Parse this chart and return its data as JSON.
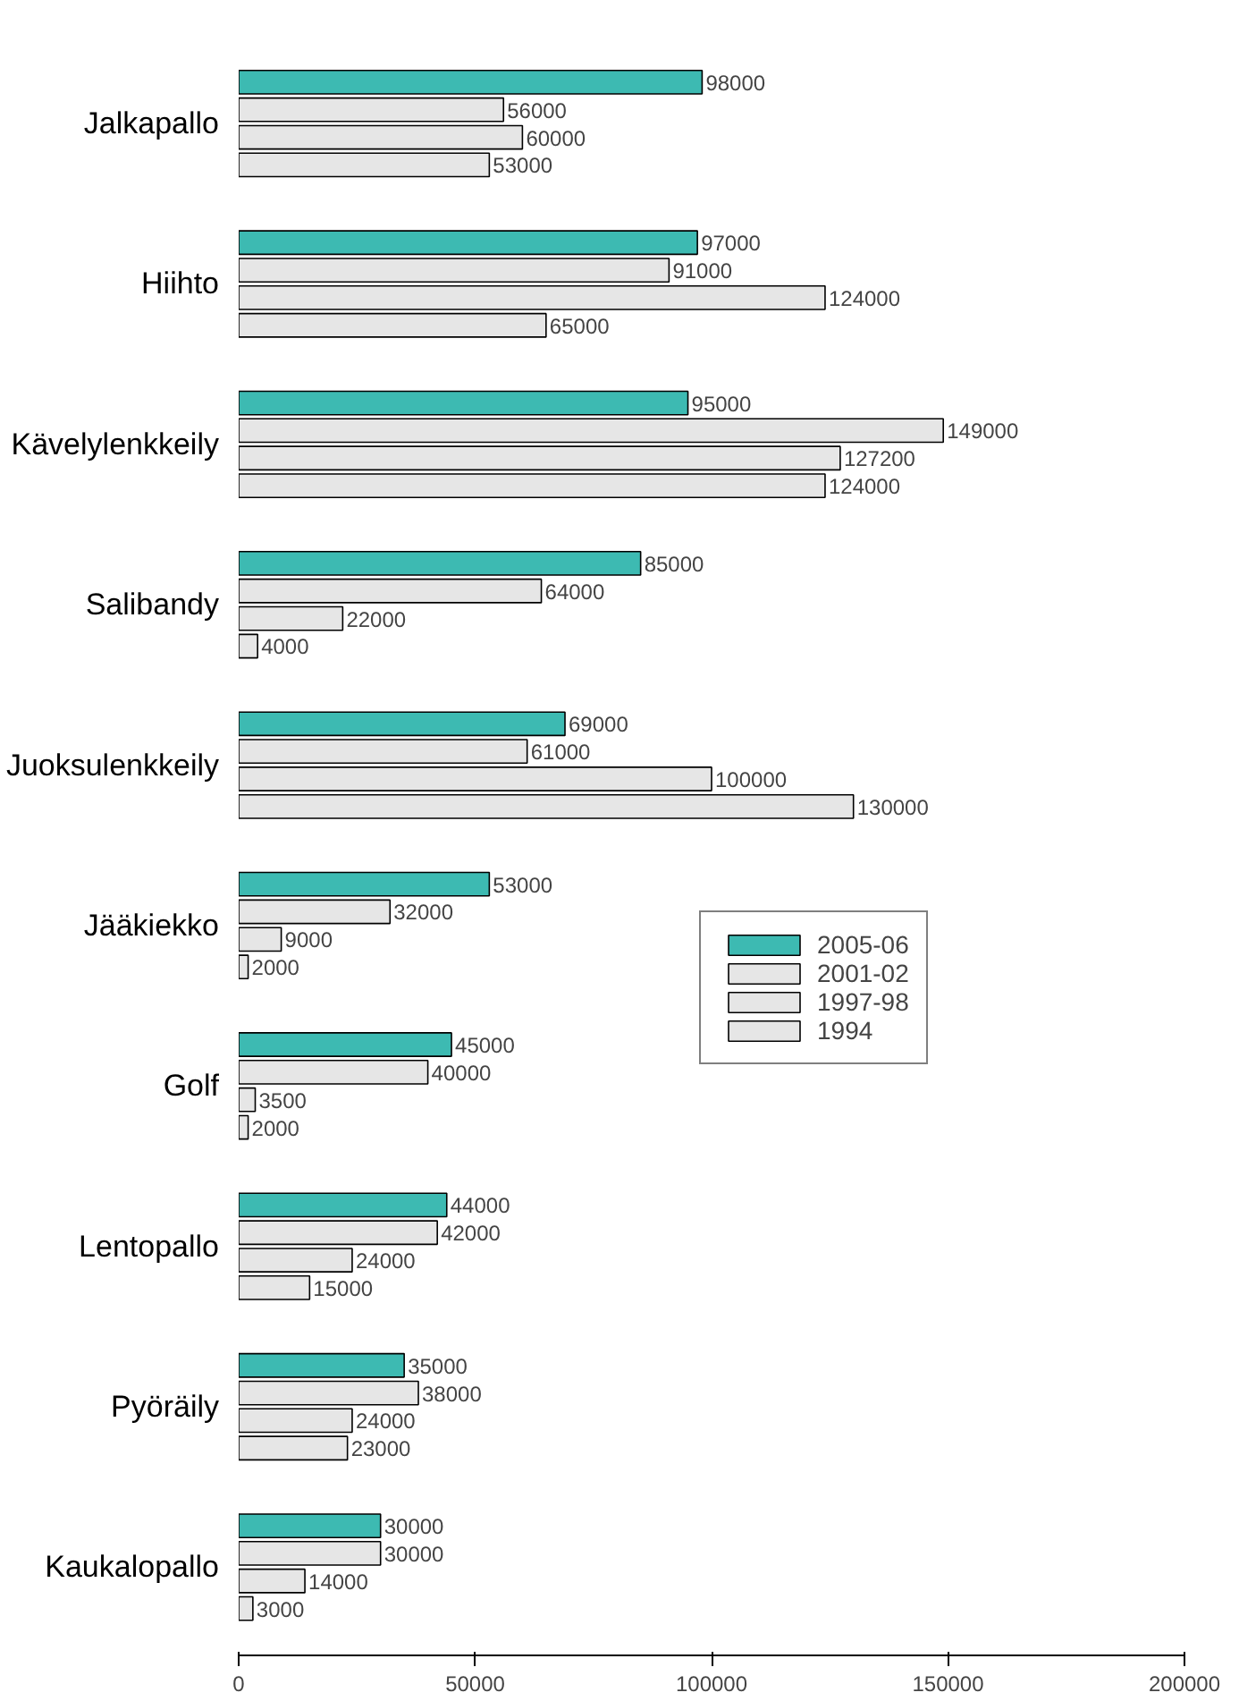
{
  "chart_data": {
    "type": "bar",
    "orientation": "horizontal",
    "categories": [
      "Jalkapallo",
      "Hiihto",
      "Kävelylenkkeily",
      "Salibandy",
      "Juoksulenkkeily",
      "Jääkiekko",
      "Golf",
      "Lentopallo",
      "Pyöräily",
      "Kaukalopallo"
    ],
    "series": [
      {
        "name": "2005-06",
        "color": "#3dbab2",
        "values": [
          98000,
          97000,
          95000,
          85000,
          69000,
          53000,
          45000,
          44000,
          35000,
          30000
        ]
      },
      {
        "name": "2001-02",
        "color": "#e6e6e6",
        "values": [
          56000,
          91000,
          149000,
          64000,
          61000,
          32000,
          40000,
          42000,
          38000,
          30000
        ]
      },
      {
        "name": "1997-98",
        "color": "#e6e6e6",
        "values": [
          60000,
          124000,
          127200,
          22000,
          100000,
          9000,
          3500,
          24000,
          24000,
          14000
        ]
      },
      {
        "name": "1994",
        "color": "#e6e6e6",
        "values": [
          53000,
          65000,
          124000,
          4000,
          130000,
          2000,
          2000,
          15000,
          23000,
          3000
        ]
      }
    ],
    "xlim": [
      0,
      200000
    ],
    "xticks": [
      0,
      50000,
      100000,
      150000,
      200000
    ],
    "grid": false,
    "legend": "right",
    "data_labels": true
  }
}
